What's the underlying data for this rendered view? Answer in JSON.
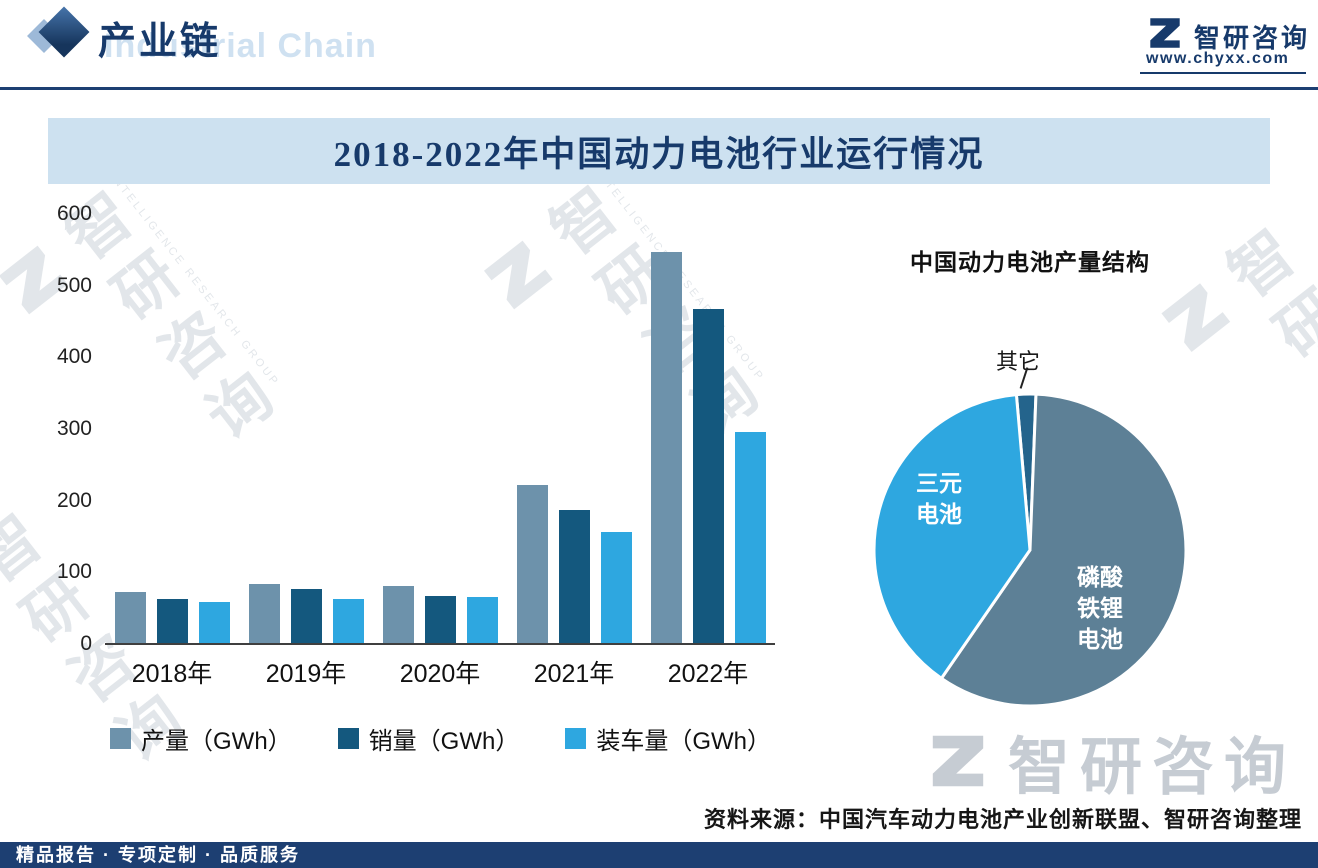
{
  "header": {
    "title": "产业链",
    "title_en": "Industrial Chain",
    "brand_name": "智研咨询",
    "brand_url": "www.chyxx.com"
  },
  "chart_data": [
    {
      "type": "bar",
      "title": "2018-2022年中国动力电池行业运行情况",
      "categories": [
        "2018年",
        "2019年",
        "2020年",
        "2021年",
        "2022年"
      ],
      "series": [
        {
          "name": "产量（GWh）",
          "color": "#6d92ab",
          "values": [
            71,
            83,
            80,
            220,
            546
          ]
        },
        {
          "name": "销量（GWh）",
          "color": "#14587e",
          "values": [
            62,
            76,
            66,
            186,
            466
          ]
        },
        {
          "name": "装车量（GWh）",
          "color": "#2ea7e0",
          "values": [
            57,
            62,
            64,
            155,
            295
          ]
        }
      ],
      "xlabel": "",
      "ylabel": "",
      "ylim": [
        0,
        600
      ],
      "ytick_step": 100,
      "grid": false,
      "legend_position": "bottom"
    },
    {
      "type": "pie",
      "title": "中国动力电池产量结构",
      "start_angle_deg": -5,
      "slices": [
        {
          "name": "其它",
          "value": 2,
          "color": "#24648c"
        },
        {
          "name": "磷酸铁锂电池",
          "value": 59,
          "color": "#5d8096",
          "label_lines": [
            "磷酸",
            "铁锂",
            "电池"
          ]
        },
        {
          "name": "三元电池",
          "value": 39,
          "color": "#2ea7e0",
          "label_lines": [
            "三元",
            "电池"
          ]
        }
      ]
    }
  ],
  "source": {
    "text": "资料来源：中国汽车动力电池产业创新联盟、智研咨询整理"
  },
  "footer": {
    "text": "精品报告 · 专项定制 · 品质服务"
  },
  "watermark": {
    "cn": "智研咨询",
    "en": "INTELLIGENCE RESEARCH GROUP"
  }
}
